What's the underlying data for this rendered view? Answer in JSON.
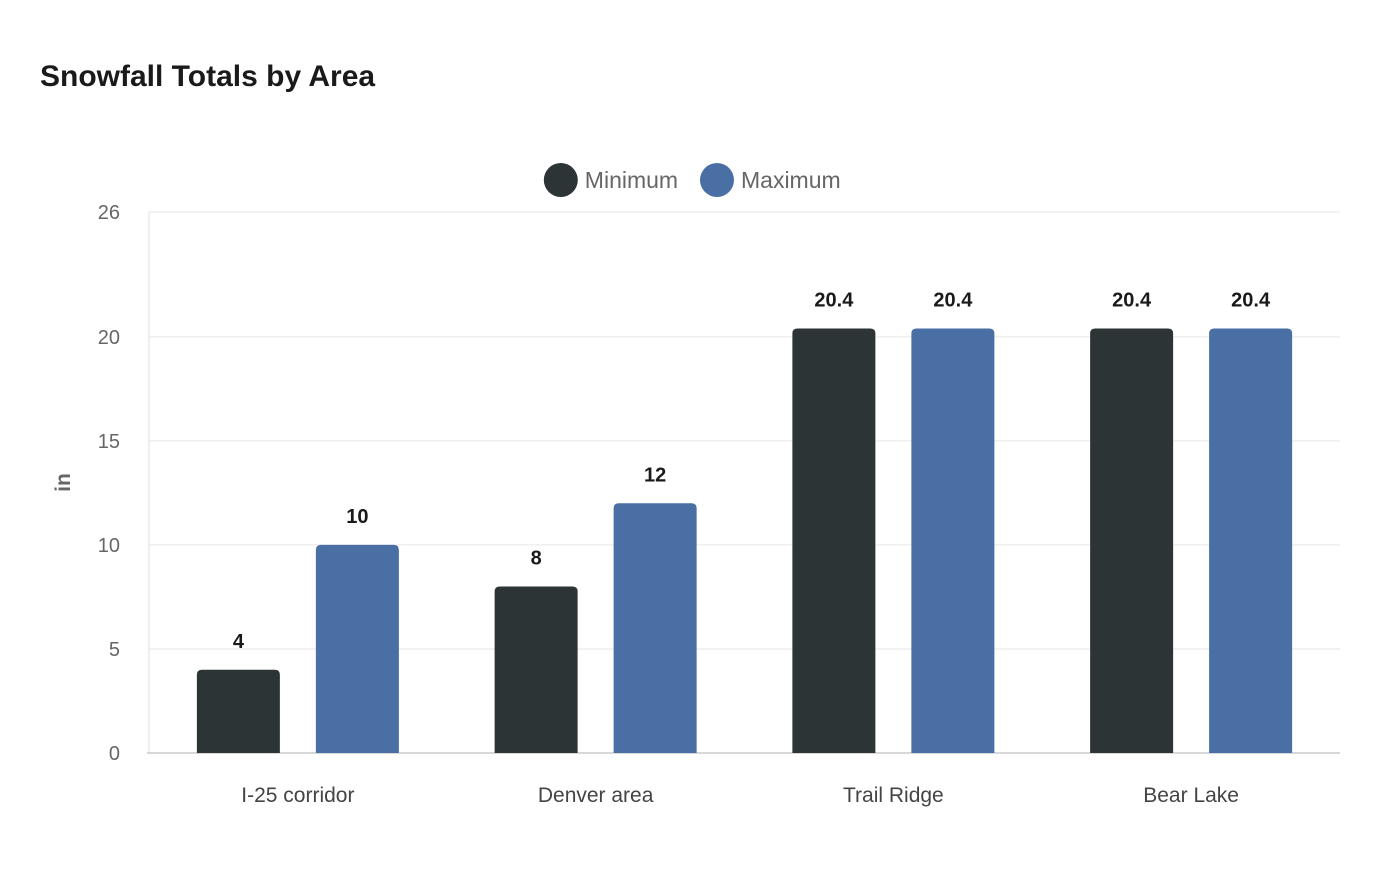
{
  "chart_data": {
    "type": "bar",
    "title": "Snowfall Totals by Area",
    "xlabel": "",
    "ylabel": "in",
    "ylim": [
      0,
      26
    ],
    "yticks": [
      0,
      5,
      10,
      15,
      20,
      26
    ],
    "grid": true,
    "legend_position": "top-center",
    "categories": [
      "I-25 corridor",
      "Denver area",
      "Trail Ridge",
      "Bear Lake"
    ],
    "series": [
      {
        "name": "Minimum",
        "color": "#2d3436",
        "values": [
          4,
          8,
          20.4,
          20.4
        ]
      },
      {
        "name": "Maximum",
        "color": "#4a6fa5",
        "values": [
          10,
          12,
          20.4,
          20.4
        ]
      }
    ]
  }
}
